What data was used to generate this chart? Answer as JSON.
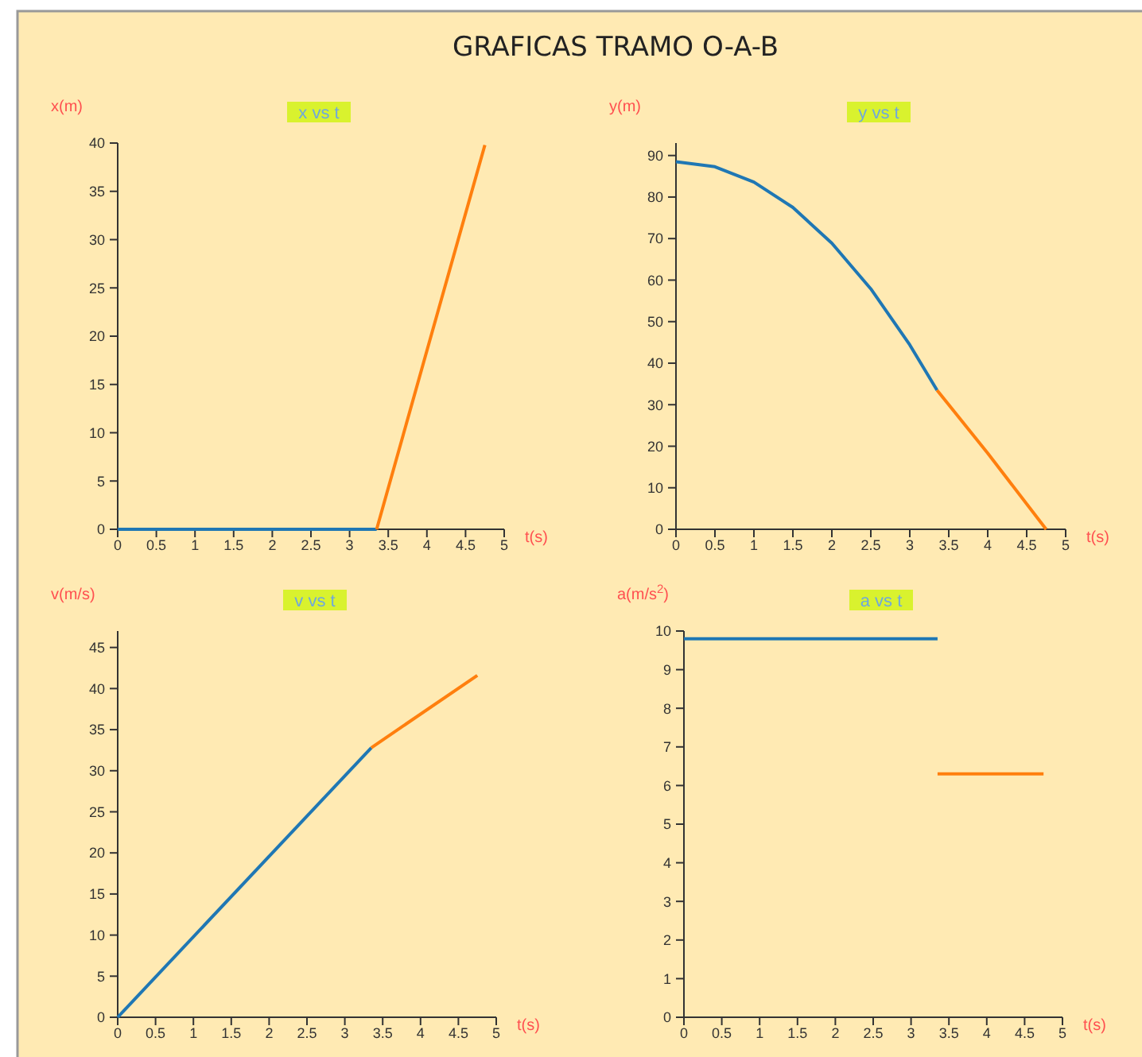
{
  "chart_data": [
    {
      "type": "line",
      "title": "x vs t",
      "xlabel": "t(s)",
      "ylabel": "x(m)",
      "annotations": [
        "GRAFICAS TRAMO O-A-B"
      ],
      "xlim": [
        0,
        5
      ],
      "xticks": [
        0,
        0.5,
        1,
        1.5,
        2,
        2.5,
        3,
        3.5,
        4,
        4.5,
        5
      ],
      "ylim": [
        0,
        40
      ],
      "yticks": [
        0,
        5,
        10,
        15,
        20,
        25,
        30,
        35,
        40
      ],
      "series": [
        {
          "color": "#1f77b4",
          "x": [
            0,
            3.35
          ],
          "values": [
            0,
            0
          ]
        },
        {
          "color": "#ff7f0e",
          "x": [
            3.35,
            4,
            4.75
          ],
          "values": [
            0,
            18.5,
            39.8
          ]
        }
      ]
    },
    {
      "type": "line",
      "title": "y vs t",
      "xlabel": "t(s)",
      "ylabel": "y(m)",
      "xlim": [
        0,
        5
      ],
      "xticks": [
        0,
        0.5,
        1,
        1.5,
        2,
        2.5,
        3,
        3.5,
        4,
        4.5,
        5
      ],
      "ylim": [
        0,
        93
      ],
      "yticks": [
        0,
        10,
        20,
        30,
        40,
        50,
        60,
        70,
        80,
        90
      ],
      "series": [
        {
          "color": "#1f77b4",
          "x": [
            0,
            0.5,
            1,
            1.5,
            2,
            2.5,
            3,
            3.35
          ],
          "values": [
            88.5,
            87.3,
            83.6,
            77.5,
            68.9,
            57.9,
            44.4,
            33.5
          ]
        },
        {
          "color": "#ff7f0e",
          "x": [
            3.35,
            4,
            4.75
          ],
          "values": [
            33.5,
            18.3,
            0
          ]
        }
      ]
    },
    {
      "type": "line",
      "title": "v vs t",
      "xlabel": "t(s)",
      "ylabel": "v(m/s)",
      "xlim": [
        0,
        5
      ],
      "xticks": [
        0,
        0.5,
        1,
        1.5,
        2,
        2.5,
        3,
        3.5,
        4,
        4.5,
        5
      ],
      "ylim": [
        0,
        47
      ],
      "yticks": [
        0,
        5,
        10,
        15,
        20,
        25,
        30,
        35,
        40,
        45
      ],
      "series": [
        {
          "color": "#1f77b4",
          "x": [
            0,
            3.35
          ],
          "values": [
            0,
            32.8
          ]
        },
        {
          "color": "#ff7f0e",
          "x": [
            3.35,
            4.75
          ],
          "values": [
            32.8,
            41.6
          ]
        }
      ]
    },
    {
      "type": "line",
      "title": "a vs t",
      "xlabel": "t(s)",
      "ylabel": "a(m/s$^{2}$)",
      "xlim": [
        0,
        5
      ],
      "xticks": [
        0,
        0.5,
        1,
        1.5,
        2,
        2.5,
        3,
        3.5,
        4,
        4.5,
        5
      ],
      "ylim": [
        0,
        10
      ],
      "yticks": [
        0,
        1,
        2,
        3,
        4,
        5,
        6,
        7,
        8,
        9,
        10
      ],
      "series": [
        {
          "color": "#1f77b4",
          "x": [
            0,
            3.35
          ],
          "values": [
            9.8,
            9.8
          ]
        },
        {
          "color": "#ff7f0e",
          "x": [
            3.35,
            4.75
          ],
          "values": [
            6.3,
            6.3
          ]
        }
      ]
    }
  ]
}
